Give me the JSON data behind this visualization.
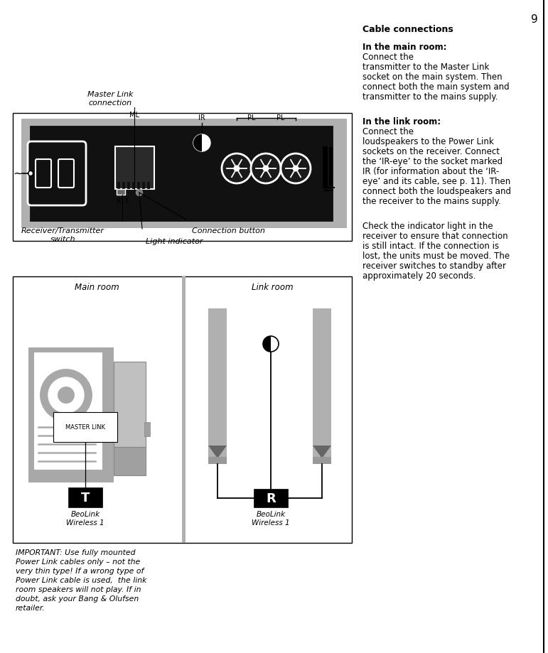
{
  "page_number": "9",
  "bg_color": "#ffffff",
  "black": "#000000",
  "white": "#ffffff",
  "gray_med": "#aaaaaa",
  "gray_dark": "#555555",
  "gray_light": "#cccccc",
  "gray_panel": "#b8b8b8",
  "device_black": "#111111",
  "top_diagram": {
    "label_master_link": "Master Link\nconnection",
    "label_ml": "ML",
    "label_ir": "IR",
    "label_pl1": "PL",
    "label_pl2": "PL",
    "label_r": "R",
    "label_t": "T",
    "label_connection_button": "Connection button",
    "label_light_indicator": "Light indicator",
    "label_receiver_transmitter": "Receiver/Transmitter\nswitch",
    "label_tilde": "~"
  },
  "bottom_diagram": {
    "label_main_room": "Main room",
    "label_link_room": "Link room",
    "label_master_link": "MASTER LINK",
    "label_T": "T",
    "label_R": "R",
    "label_beolink_t": "BeoLink\nWireless 1",
    "label_beolink_r": "BeoLink\nWireless 1"
  },
  "right_col": {
    "title": "Cable connections",
    "main_room_bold": "In the main room:",
    "main_room_text": "Connect the\ntransmitter to the Master Link\nsocket on the main system. Then\nconnect both the main system and\ntransmitter to the mains supply.",
    "link_room_bold": "In the link room:",
    "link_room_text": "Connect the\nloudspeakers to the Power Link\nsockets on the receiver. Connect\nthe ‘IR-eye’ to the socket marked\nIR (for information about the ‘IR-\neye’ and its cable, see p. 11). Then\nconnect both the loudspeakers and\nthe receiver to the mains supply.",
    "check_text": "Check the indicator light in the\nreceiver to ensure that connection\nis still intact. If the connection is\nlost, the units must be moved. The\nreceiver switches to standby after\napproximately 20 seconds."
  },
  "important_text": "IMPORTANT: Use fully mounted\nPower Link cables only – not the\nvery thin type! If a wrong type of\nPower Link cable is used,  the link\nroom speakers will not play. If in\ndoubt, ask your Bang & Olufsen\nretailer."
}
